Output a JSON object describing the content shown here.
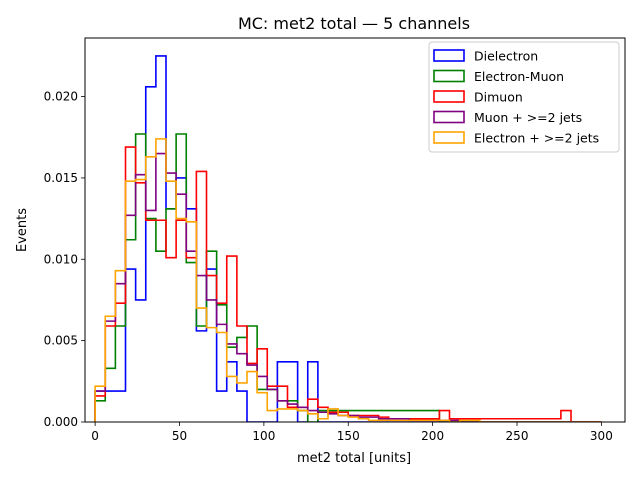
{
  "chart_data": {
    "type": "step-histogram",
    "title": "MC: met2 total — 5 channels",
    "xlabel": "met2 total [units]",
    "ylabel": "Events",
    "xlim": [
      -6,
      314
    ],
    "ylim": [
      0,
      0.0236
    ],
    "bin_width": 6.0,
    "bin_start": 0,
    "xticks": [
      0,
      50,
      100,
      150,
      200,
      250,
      300
    ],
    "xtick_labels": [
      "0",
      "50",
      "100",
      "150",
      "200",
      "250",
      "300"
    ],
    "yticks": [
      0,
      0.005,
      0.01,
      0.015,
      0.02
    ],
    "ytick_labels": [
      "0.000",
      "0.005",
      "0.010",
      "0.015",
      "0.020"
    ],
    "legend_location": "top-right",
    "series": [
      {
        "name": "Dielectron",
        "color": "#0000ff",
        "values": [
          0.0019,
          0.0019,
          0.0019,
          0.0094,
          0.0075,
          0.0206,
          0.0225,
          0.0131,
          0.015,
          0.0131,
          0.0056,
          0.0094,
          0.0019,
          0.0037,
          0.0019,
          0,
          0,
          0,
          0.0037,
          0.0037,
          0,
          0.0037,
          0,
          0,
          0,
          0,
          0,
          0,
          0,
          0,
          0,
          0,
          0,
          0,
          0,
          0,
          0,
          0,
          0,
          0,
          0,
          0,
          0,
          0,
          0,
          0,
          0,
          0,
          0,
          0
        ]
      },
      {
        "name": "Electron-Muon",
        "color": "#008000",
        "values": [
          0.0013,
          0.0033,
          0.0059,
          0.0112,
          0.0177,
          0.0125,
          0.0105,
          0.0131,
          0.0177,
          0.0098,
          0.0059,
          0.0105,
          0.0072,
          0.0046,
          0.0052,
          0.0059,
          0.002,
          0.002,
          0.0013,
          0.0013,
          0.0007,
          0,
          0.0007,
          0.0007,
          0.0007,
          0.0007,
          0.0007,
          0.0007,
          0.0007,
          0.0007,
          0.0007,
          0.0007,
          0.0007,
          0.0007,
          0,
          0,
          0,
          0,
          0,
          0,
          0,
          0,
          0,
          0,
          0,
          0,
          0,
          0,
          0,
          0
        ]
      },
      {
        "name": "Dimuon",
        "color": "#ff0000",
        "values": [
          0.0016,
          0.0059,
          0.0073,
          0.0169,
          0.0147,
          0.0124,
          0.0124,
          0.0101,
          0.0124,
          0.0101,
          0.0154,
          0.009,
          0.0073,
          0.0102,
          0.0059,
          0.0036,
          0.0045,
          0.0022,
          0.0022,
          0.0009,
          0.0009,
          0.0014,
          0.0009,
          0.0006,
          0.0006,
          0.0004,
          0.0004,
          0.0004,
          0.0003,
          0.0002,
          0.0002,
          0.0002,
          0.0002,
          0.0002,
          0.0007,
          0.0002,
          0.0002,
          0.0002,
          0.0002,
          0.0002,
          0.0002,
          0.0002,
          0.0002,
          0.0002,
          0.0002,
          0.0002,
          0.0007,
          0,
          0,
          0
        ]
      },
      {
        "name": "Muon + >=2 jets",
        "color": "#800080",
        "values": [
          0.0019,
          0.0062,
          0.0085,
          0.0127,
          0.0152,
          0.013,
          0.0165,
          0.0153,
          0.014,
          0.0105,
          0.009,
          0.0075,
          0.006,
          0.0048,
          0.0042,
          0.0035,
          0.0028,
          0.002,
          0.0013,
          0.0011,
          0.0009,
          0.0007,
          0.0006,
          0.0005,
          0.0004,
          0.0004,
          0.0003,
          0.0003,
          0.0002,
          0.0002,
          0.0002,
          0.0001,
          0.0001,
          0.0001,
          0.0001,
          0.0001,
          0,
          0,
          0,
          0,
          0,
          0,
          0,
          0,
          0,
          0,
          0,
          0,
          0,
          0
        ]
      },
      {
        "name": "Electron + >=2 jets",
        "color": "#ffa500",
        "values": [
          0.0022,
          0.0065,
          0.0093,
          0.0148,
          0.0149,
          0.0163,
          0.0174,
          0.0148,
          0.0125,
          0.0123,
          0.007,
          0.0058,
          0.0055,
          0.0028,
          0.0024,
          0.0031,
          0.0018,
          0.0007,
          0.0008,
          0.0008,
          0.0007,
          0.0005,
          0.0002,
          0.0008,
          0.0004,
          0.0003,
          0.0002,
          0.0001,
          0.0001,
          0.0001,
          0.0001,
          0.0001,
          0.0001,
          0.0001,
          0.0001,
          0,
          0.0001,
          0.0001,
          0,
          0,
          0,
          0,
          0,
          0,
          0,
          0,
          0,
          0,
          0,
          0
        ]
      }
    ]
  }
}
